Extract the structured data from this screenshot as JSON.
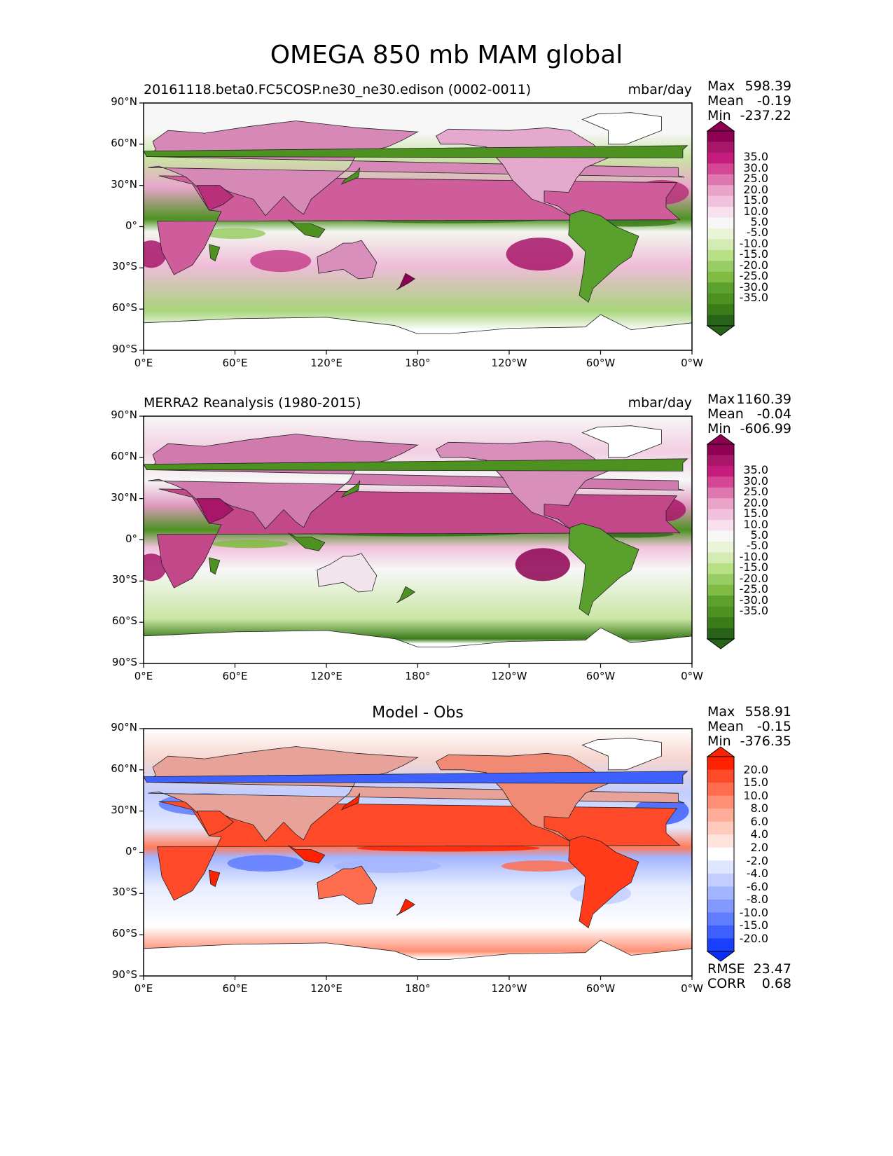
{
  "title": "OMEGA 850 mb MAM global",
  "lat_ticks": [
    "90°N",
    "60°N",
    "30°N",
    "0°",
    "30°S",
    "60°S",
    "90°S"
  ],
  "lon_ticks": [
    "0°E",
    "60°E",
    "120°E",
    "180°",
    "120°W",
    "60°W",
    "0°W"
  ],
  "panels": [
    {
      "left_title": "20161118.beta0.FC5COSP.ne30_ne30.edison (0002-0011)",
      "center_title": "",
      "units": "mbar/day",
      "stats": [
        {
          "label": "Max",
          "value": "598.39"
        },
        {
          "label": "Mean",
          "value": "-0.19"
        },
        {
          "label": "Min",
          "value": "-237.22"
        }
      ],
      "colorbar": {
        "labels": [
          "35.0",
          "30.0",
          "25.0",
          "20.0",
          "15.0",
          "10.0",
          "5.0",
          "-5.0",
          "-10.0",
          "-15.0",
          "-20.0",
          "-25.0",
          "-30.0",
          "-35.0"
        ],
        "colors": [
          "#8e0152",
          "#a8166a",
          "#c51b7d",
          "#d54794",
          "#de77ae",
          "#eaa3c9",
          "#f1c2dd",
          "#f9e0ee",
          "#f7f7f7",
          "#eaf5d8",
          "#d4ecb3",
          "#b8e186",
          "#98cc64",
          "#7fbc41",
          "#5da12f",
          "#4d9221",
          "#3a7b1a",
          "#276419"
        ],
        "top_color": "#8e0152",
        "bottom_color": "#276419"
      },
      "metrics": []
    },
    {
      "left_title": "MERRA2 Reanalysis (1980-2015)",
      "center_title": "",
      "units": "mbar/day",
      "stats": [
        {
          "label": "Max",
          "value": "1160.39"
        },
        {
          "label": "Mean",
          "value": "-0.04"
        },
        {
          "label": "Min",
          "value": "-606.99"
        }
      ],
      "colorbar": {
        "labels": [
          "35.0",
          "30.0",
          "25.0",
          "20.0",
          "15.0",
          "10.0",
          "5.0",
          "-5.0",
          "-10.0",
          "-15.0",
          "-20.0",
          "-25.0",
          "-30.0",
          "-35.0"
        ],
        "colors": [
          "#8e0152",
          "#a8166a",
          "#c51b7d",
          "#d54794",
          "#de77ae",
          "#eaa3c9",
          "#f1c2dd",
          "#f9e0ee",
          "#f7f7f7",
          "#eaf5d8",
          "#d4ecb3",
          "#b8e186",
          "#98cc64",
          "#7fbc41",
          "#5da12f",
          "#4d9221",
          "#3a7b1a",
          "#276419"
        ],
        "top_color": "#8e0152",
        "bottom_color": "#276419"
      },
      "metrics": []
    },
    {
      "left_title": "",
      "center_title": "Model - Obs",
      "units": "",
      "stats": [
        {
          "label": "Max",
          "value": "558.91"
        },
        {
          "label": "Mean",
          "value": "-0.15"
        },
        {
          "label": "Min",
          "value": "-376.35"
        }
      ],
      "colorbar": {
        "labels": [
          "20.0",
          "15.0",
          "10.0",
          "8.0",
          "6.0",
          "4.0",
          "2.0",
          "-2.0",
          "-4.0",
          "-6.0",
          "-8.0",
          "-10.0",
          "-15.0",
          "-20.0"
        ],
        "colors": [
          "#ff2200",
          "#ff4a2a",
          "#ff6d4f",
          "#ff8f74",
          "#ffac98",
          "#ffc9bb",
          "#ffe4dc",
          "#ffffff",
          "#dfe6ff",
          "#c2ceff",
          "#a3b5ff",
          "#8399ff",
          "#5f7dff",
          "#3d60ff",
          "#1a40ff"
        ],
        "top_color": "#ff2200",
        "bottom_color": "#0a2dff"
      },
      "metrics": [
        {
          "label": "RMSE",
          "value": "23.47"
        },
        {
          "label": "CORR",
          "value": "0.68"
        }
      ]
    }
  ]
}
